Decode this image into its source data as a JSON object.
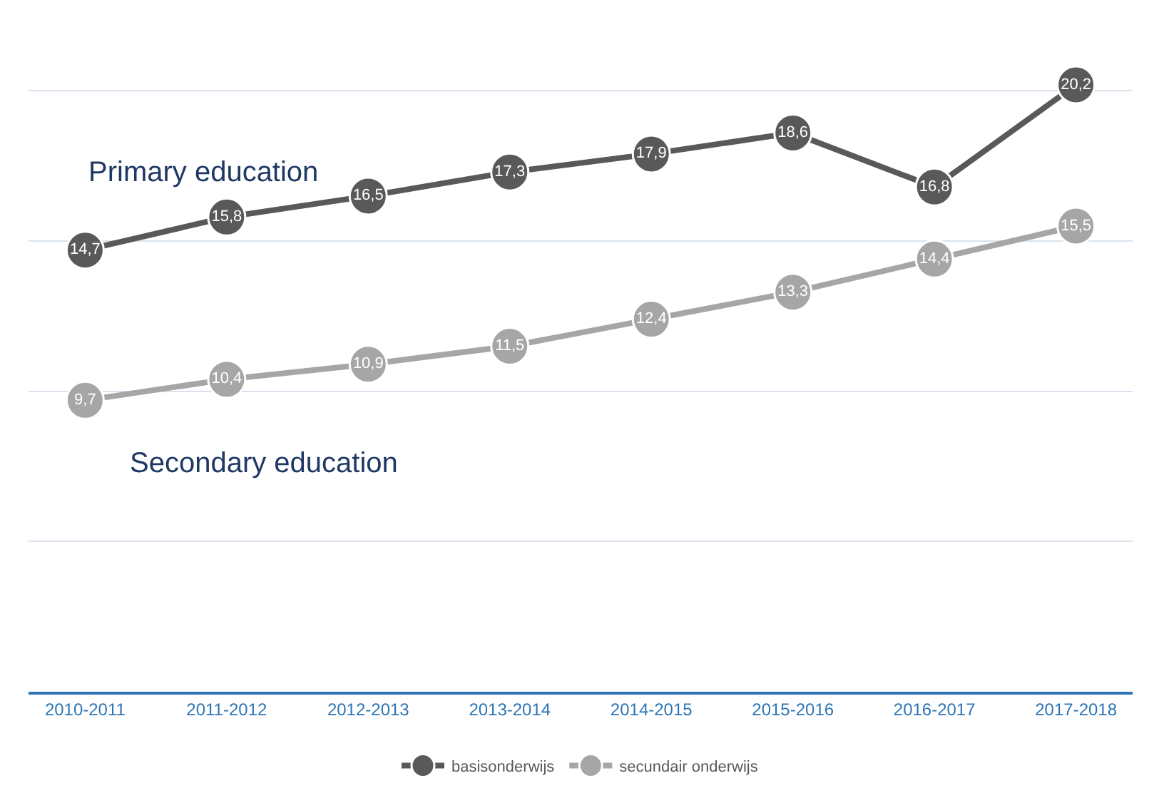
{
  "chart_data": {
    "type": "line",
    "categories": [
      "2010-2011",
      "2011-2012",
      "2012-2013",
      "2013-2014",
      "2014-2015",
      "2015-2016",
      "2016-2017",
      "2017-2018"
    ],
    "series": [
      {
        "name": "basisonderwijs",
        "color": "#595959",
        "values": [
          14.7,
          15.8,
          16.5,
          17.3,
          17.9,
          18.6,
          16.8,
          20.2
        ],
        "value_labels": [
          "14,7",
          "15,8",
          "16,5",
          "17,3",
          "17,9",
          "18,6",
          "16,8",
          "20,2"
        ]
      },
      {
        "name": "secundair onderwijs",
        "color": "#a6a6a6",
        "values": [
          9.7,
          10.4,
          10.9,
          11.5,
          12.4,
          13.3,
          14.4,
          15.5
        ],
        "value_labels": [
          "9,7",
          "10,4",
          "10,9",
          "11,5",
          "12,4",
          "13,3",
          "14,4",
          "15,5"
        ]
      }
    ],
    "annotations": [
      "Primary education",
      "Secondary education"
    ],
    "tick_labels": "x",
    "grid": "y",
    "legend": "bottom",
    "marker": "circle",
    "line_style": "solid"
  }
}
